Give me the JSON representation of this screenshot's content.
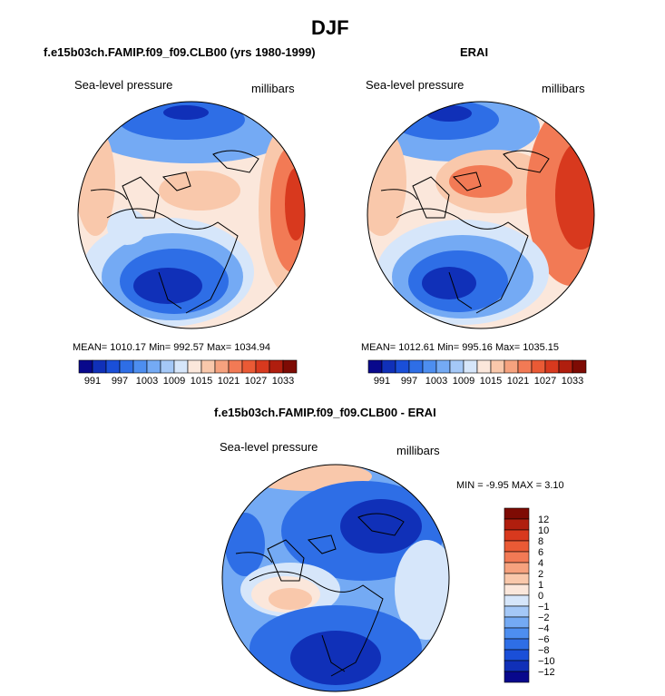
{
  "page": {
    "title": "DJF"
  },
  "panels": [
    {
      "title": "f.e15b03ch.FAMIP.f09_f09.CLB00 (yrs 1980-1999)",
      "variable": "Sea-level pressure",
      "units": "millibars",
      "stats_text": "MEAN= 1010.17  Min= 992.57  Max= 1034.94"
    },
    {
      "title": "ERAI",
      "variable": "Sea-level pressure",
      "units": "millibars",
      "stats_text": "MEAN= 1012.61  Min= 995.16  Max= 1035.15"
    },
    {
      "title": "f.e15b03ch.FAMIP.f09_f09.CLB00 - ERAI",
      "variable": "Sea-level pressure",
      "units": "millibars",
      "stats_text": "MIN =   -9.95 MAX =    3.10"
    }
  ],
  "slp_colorbar": {
    "colors": [
      "#08088c",
      "#1030b8",
      "#1a4fd8",
      "#2e6ee6",
      "#4d8ef0",
      "#74aaf4",
      "#a4c8f7",
      "#d6e6fa",
      "#fbe7db",
      "#f9c8ab",
      "#f6a27e",
      "#f27a55",
      "#ea5a35",
      "#d8391e",
      "#b01e0e",
      "#7e0b04"
    ],
    "labels": [
      "991",
      "997",
      "1003",
      "1009",
      "1015",
      "1021",
      "1027",
      "1033"
    ]
  },
  "diff_colorbar": {
    "colors": [
      "#7e0b04",
      "#b01e0e",
      "#d8391e",
      "#ea5a35",
      "#f27a55",
      "#f6a27e",
      "#f9c8ab",
      "#fbe7db",
      "#d6e6fa",
      "#a4c8f7",
      "#74aaf4",
      "#4d8ef0",
      "#2e6ee6",
      "#1a4fd8",
      "#1030b8",
      "#08088c"
    ],
    "labels": [
      "12",
      "10",
      "8",
      "6",
      "4",
      "2",
      "1",
      "0",
      "−1",
      "−2",
      "−4",
      "−6",
      "−8",
      "−10",
      "−12"
    ]
  },
  "map_colors": {
    "deep_blue": "#1030b8",
    "blue": "#2e6ee6",
    "mid_blue": "#74aaf4",
    "light_blue": "#d6e6fa",
    "cream": "#fbe7db",
    "peach": "#f9c8ab",
    "orange": "#f27a55",
    "red": "#d8391e",
    "dark_red": "#b01e0e"
  }
}
